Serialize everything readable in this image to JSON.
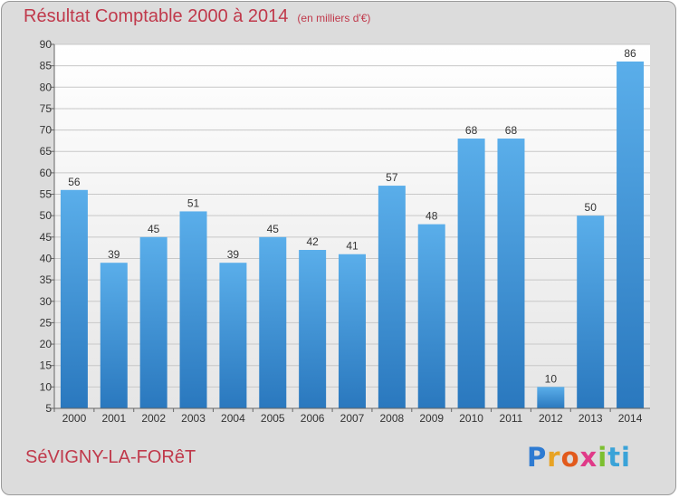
{
  "header": {
    "title": "Résultat Comptable 2000 à 2014",
    "subtitle": "(en milliers d'€)"
  },
  "footer": {
    "commune": "SéVIGNY-LA-FORêT",
    "logo_parts": [
      "P",
      "r",
      "o",
      "x",
      "i",
      "ti"
    ]
  },
  "chart_data": {
    "type": "bar",
    "title": "Résultat Comptable 2000 à 2014",
    "subtitle": "(en milliers d'€)",
    "categories": [
      "2000",
      "2001",
      "2002",
      "2003",
      "2004",
      "2005",
      "2006",
      "2007",
      "2008",
      "2009",
      "2010",
      "2011",
      "2012",
      "2013",
      "2014"
    ],
    "values": [
      56,
      39,
      45,
      51,
      39,
      45,
      42,
      41,
      57,
      48,
      68,
      68,
      10,
      50,
      86
    ],
    "ylim": [
      5,
      90
    ],
    "yticks": [
      5,
      10,
      15,
      20,
      25,
      30,
      35,
      40,
      45,
      50,
      55,
      60,
      65,
      70,
      75,
      80,
      85,
      90
    ],
    "grid": true,
    "bar_color": "#3c8fd8",
    "xlabel": "",
    "ylabel": ""
  }
}
